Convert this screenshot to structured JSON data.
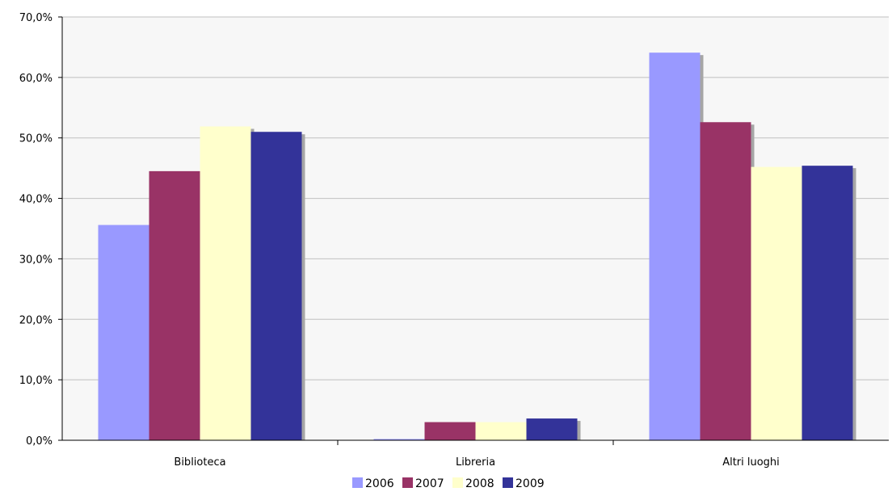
{
  "chart_data": {
    "type": "bar",
    "categories": [
      "Biblioteca",
      "Libreria",
      "Altri luoghi"
    ],
    "series": [
      {
        "name": "2006",
        "values": [
          35.6,
          0.2,
          64.1
        ],
        "color": "#9999ff"
      },
      {
        "name": "2007",
        "values": [
          44.5,
          3.0,
          52.6
        ],
        "color": "#993366"
      },
      {
        "name": "2008",
        "values": [
          51.9,
          3.0,
          45.2
        ],
        "color": "#ffffcc"
      },
      {
        "name": "2009",
        "values": [
          51.0,
          3.6,
          45.4
        ],
        "color": "#333399"
      }
    ],
    "y_ticks": [
      "0,0%",
      "10,0%",
      "20,0%",
      "30,0%",
      "40,0%",
      "50,0%",
      "60,0%",
      "70,0%"
    ],
    "ylim": [
      0,
      70
    ],
    "grid": true,
    "legend_position": "bottom",
    "plot_background": "#f7f7f7",
    "grid_color": "#c0c0c0"
  }
}
